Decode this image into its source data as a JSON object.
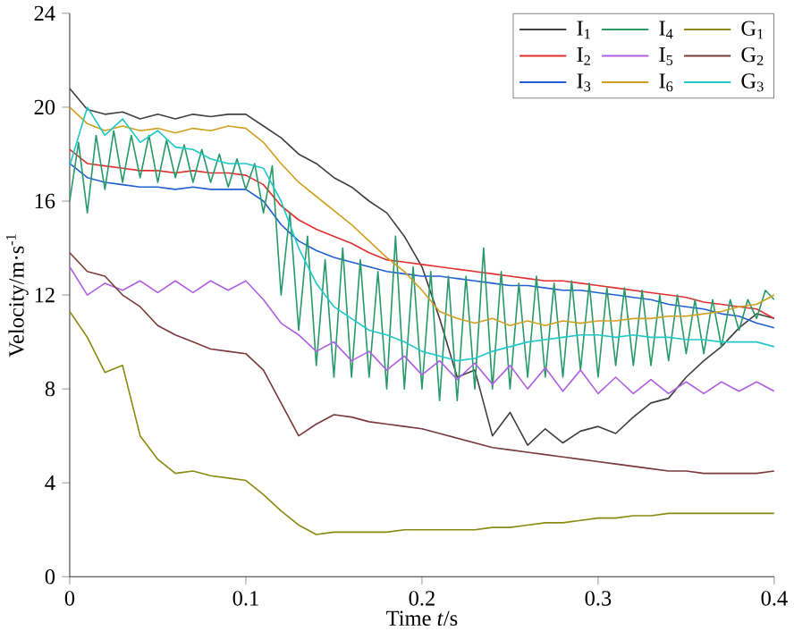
{
  "chart_data": {
    "type": "line",
    "xlabel": "Time *t*/s",
    "ylabel": "Velocity/m·s$^{-1}$",
    "legend": "top right",
    "grid": false,
    "marker": "none",
    "line_style": "solid",
    "xlim": [
      0,
      0.4
    ],
    "xticks": [
      0,
      0.1,
      0.2,
      0.3,
      0.4
    ],
    "ylim": [
      0,
      24
    ],
    "yticks": [
      0,
      4,
      8,
      12,
      16,
      20,
      24
    ],
    "x": [
      0,
      0.01,
      0.02,
      0.03,
      0.04,
      0.05,
      0.06,
      0.07,
      0.08,
      0.09,
      0.1,
      0.11,
      0.12,
      0.13,
      0.14,
      0.15,
      0.16,
      0.17,
      0.18,
      0.19,
      0.2,
      0.21,
      0.22,
      0.23,
      0.24,
      0.25,
      0.26,
      0.27,
      0.28,
      0.29,
      0.3,
      0.31,
      0.32,
      0.33,
      0.34,
      0.35,
      0.36,
      0.37,
      0.38,
      0.39,
      0.4
    ],
    "series": [
      {
        "name": "I$_{1}$",
        "color": "#404040",
        "values": [
          20.8,
          19.9,
          19.7,
          19.8,
          19.5,
          19.7,
          19.5,
          19.7,
          19.6,
          19.7,
          19.7,
          19.2,
          18.7,
          18.0,
          17.6,
          17.0,
          16.6,
          16.0,
          15.5,
          14.5,
          13.2,
          11.0,
          8.5,
          8.8,
          6.0,
          7.0,
          5.6,
          6.3,
          5.7,
          6.2,
          6.4,
          6.1,
          6.8,
          7.4,
          7.6,
          8.5,
          9.2,
          9.8,
          10.6,
          11.2,
          11.0
        ]
      },
      {
        "name": "I$_{2}$",
        "color": "#e03030",
        "values": [
          18.2,
          17.6,
          17.5,
          17.4,
          17.3,
          17.3,
          17.2,
          17.3,
          17.2,
          17.2,
          17.1,
          16.7,
          15.8,
          15.2,
          14.8,
          14.5,
          14.2,
          13.8,
          13.5,
          13.4,
          13.3,
          13.2,
          13.1,
          13.0,
          12.9,
          12.8,
          12.7,
          12.6,
          12.6,
          12.5,
          12.4,
          12.3,
          12.2,
          12.1,
          12.0,
          11.9,
          11.7,
          11.6,
          11.5,
          11.4,
          11.0
        ]
      },
      {
        "name": "I$_{3}$",
        "color": "#2060d0",
        "values": [
          17.6,
          17.0,
          16.8,
          16.7,
          16.6,
          16.6,
          16.5,
          16.6,
          16.5,
          16.5,
          16.5,
          16.0,
          15.0,
          14.3,
          13.9,
          13.6,
          13.4,
          13.2,
          13.0,
          12.9,
          12.8,
          12.8,
          12.7,
          12.6,
          12.5,
          12.4,
          12.4,
          12.3,
          12.2,
          12.2,
          12.1,
          12.0,
          11.9,
          11.8,
          11.6,
          11.5,
          11.4,
          11.2,
          11.1,
          10.8,
          10.6
        ]
      },
      {
        "name": "I$_{4}$",
        "color": "#2a9a6a",
        "x": [
          0,
          0.005,
          0.01,
          0.015,
          0.02,
          0.025,
          0.03,
          0.035,
          0.04,
          0.045,
          0.05,
          0.055,
          0.06,
          0.065,
          0.07,
          0.075,
          0.08,
          0.085,
          0.09,
          0.095,
          0.1,
          0.105,
          0.11,
          0.115,
          0.12,
          0.125,
          0.13,
          0.135,
          0.14,
          0.145,
          0.15,
          0.155,
          0.16,
          0.165,
          0.17,
          0.175,
          0.18,
          0.185,
          0.19,
          0.195,
          0.2,
          0.205,
          0.21,
          0.215,
          0.22,
          0.225,
          0.23,
          0.235,
          0.24,
          0.245,
          0.25,
          0.255,
          0.26,
          0.265,
          0.27,
          0.275,
          0.28,
          0.285,
          0.29,
          0.295,
          0.3,
          0.305,
          0.31,
          0.315,
          0.32,
          0.325,
          0.33,
          0.335,
          0.34,
          0.345,
          0.35,
          0.355,
          0.36,
          0.365,
          0.37,
          0.375,
          0.38,
          0.385,
          0.39,
          0.395,
          0.4
        ],
        "values": [
          16.0,
          18.5,
          15.5,
          18.8,
          16.5,
          19.0,
          16.8,
          18.8,
          17.0,
          18.8,
          16.8,
          18.6,
          17.0,
          18.4,
          16.8,
          18.2,
          16.8,
          18.0,
          16.6,
          17.8,
          16.5,
          17.6,
          15.5,
          17.5,
          12.0,
          15.5,
          10.5,
          14.5,
          9.0,
          13.5,
          8.5,
          14.0,
          8.5,
          13.5,
          8.5,
          13.0,
          8.0,
          14.5,
          8.0,
          13.2,
          8.0,
          13.0,
          7.5,
          12.8,
          7.5,
          12.8,
          8.0,
          14.0,
          8.0,
          13.0,
          8.0,
          12.5,
          8.5,
          12.8,
          8.5,
          12.5,
          8.5,
          12.6,
          8.8,
          12.5,
          8.5,
          12.3,
          9.0,
          12.3,
          9.0,
          12.2,
          9.0,
          12.0,
          9.2,
          12.0,
          9.5,
          11.8,
          9.5,
          11.8,
          9.8,
          11.8,
          10.5,
          11.8,
          11.0,
          12.2,
          11.8
        ]
      },
      {
        "name": "I$_{5}$",
        "color": "#b060e0",
        "values": [
          13.2,
          12.0,
          12.5,
          12.2,
          12.6,
          12.1,
          12.6,
          12.1,
          12.6,
          12.2,
          12.6,
          11.8,
          10.8,
          10.3,
          9.6,
          10.0,
          9.2,
          9.6,
          8.8,
          9.4,
          8.6,
          9.2,
          8.4,
          9.1,
          8.2,
          9.0,
          8.0,
          8.9,
          7.9,
          8.8,
          7.8,
          8.5,
          7.8,
          8.4,
          7.8,
          8.3,
          7.8,
          8.3,
          7.9,
          8.3,
          7.9
        ]
      },
      {
        "name": "I$_{6}$",
        "color": "#d0a020",
        "values": [
          20.0,
          19.3,
          19.0,
          19.2,
          19.0,
          19.1,
          18.9,
          19.1,
          19.0,
          19.2,
          19.1,
          18.5,
          17.6,
          16.8,
          16.2,
          15.6,
          15.0,
          14.3,
          13.6,
          13.0,
          12.2,
          11.3,
          11.0,
          10.8,
          11.0,
          10.7,
          10.9,
          10.7,
          10.9,
          10.8,
          10.9,
          10.9,
          11.0,
          11.0,
          11.1,
          11.1,
          11.2,
          11.3,
          11.5,
          11.6,
          12.0
        ]
      },
      {
        "name": "G$_{1}$",
        "color": "#8a8a10",
        "values": [
          11.3,
          10.2,
          8.7,
          9.0,
          6.0,
          5.0,
          4.4,
          4.5,
          4.3,
          4.2,
          4.1,
          3.5,
          2.8,
          2.2,
          1.8,
          1.9,
          1.9,
          1.9,
          1.9,
          2.0,
          2.0,
          2.0,
          2.0,
          2.0,
          2.1,
          2.1,
          2.2,
          2.3,
          2.3,
          2.4,
          2.5,
          2.5,
          2.6,
          2.6,
          2.7,
          2.7,
          2.7,
          2.7,
          2.7,
          2.7,
          2.7
        ]
      },
      {
        "name": "G$_{2}$",
        "color": "#7a3a3a",
        "values": [
          13.8,
          13.0,
          12.8,
          12.0,
          11.5,
          10.7,
          10.3,
          10.0,
          9.7,
          9.6,
          9.5,
          8.8,
          7.4,
          6.0,
          6.5,
          6.9,
          6.8,
          6.6,
          6.5,
          6.4,
          6.3,
          6.1,
          5.9,
          5.7,
          5.5,
          5.4,
          5.3,
          5.2,
          5.1,
          5.0,
          4.9,
          4.8,
          4.7,
          4.6,
          4.5,
          4.5,
          4.4,
          4.4,
          4.4,
          4.4,
          4.5
        ]
      },
      {
        "name": "G$_{3}$",
        "color": "#20c8c8",
        "values": [
          17.5,
          20.0,
          18.8,
          19.5,
          18.5,
          19.0,
          18.3,
          18.2,
          17.8,
          17.6,
          17.6,
          17.4,
          16.0,
          14.0,
          12.5,
          11.5,
          11.0,
          10.5,
          10.3,
          10.0,
          9.6,
          9.4,
          9.2,
          9.3,
          9.6,
          9.8,
          10.0,
          10.1,
          10.2,
          10.3,
          10.3,
          10.2,
          10.3,
          10.2,
          10.2,
          10.1,
          10.1,
          10.0,
          10.0,
          10.0,
          9.8
        ]
      }
    ]
  }
}
